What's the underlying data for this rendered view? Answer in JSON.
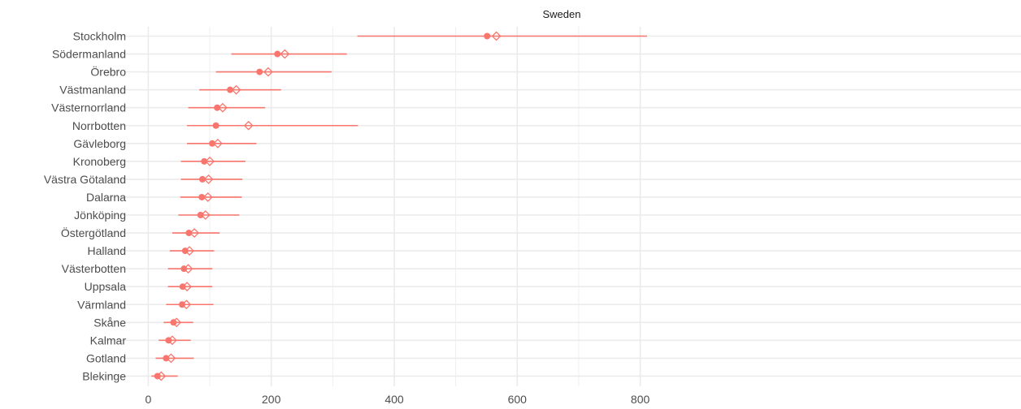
{
  "chart_data": {
    "type": "scatter",
    "title": "Sweden",
    "xlabel": "",
    "ylabel": "",
    "xlim": [
      -20,
      830
    ],
    "xticks": [
      0,
      200,
      400,
      600,
      800
    ],
    "grid": true,
    "legend": "none",
    "categories": [
      "Stockholm",
      "Södermanland",
      "Örebro",
      "Västmanland",
      "Västernorrland",
      "Norrbotten",
      "Gävleborg",
      "Kronoberg",
      "Västra Götaland",
      "Dalarna",
      "Jönköping",
      "Östergötland",
      "Halland",
      "Västerbotten",
      "Uppsala",
      "Värmland",
      "Skåne",
      "Kalmar",
      "Gotland",
      "Blekinge"
    ],
    "point_estimate": [
      551,
      210,
      181,
      133,
      112,
      110,
      104,
      91,
      88,
      87,
      85,
      66,
      60,
      58,
      56,
      55,
      41,
      33,
      29,
      15
    ],
    "diamond_estimate": [
      566,
      222,
      195,
      143,
      121,
      163,
      113,
      100,
      98,
      97,
      93,
      75,
      67,
      65,
      63,
      62,
      46,
      39,
      37,
      21
    ],
    "interval_low": [
      340,
      135,
      110,
      83,
      65,
      63,
      63,
      53,
      53,
      52,
      49,
      39,
      35,
      32,
      32,
      29,
      25,
      17,
      12,
      5
    ],
    "interval_high": [
      811,
      323,
      298,
      216,
      190,
      341,
      176,
      158,
      153,
      152,
      148,
      116,
      107,
      104,
      104,
      106,
      73,
      69,
      74,
      48
    ],
    "colors": {
      "series": "#f8766d",
      "grid": "#ebebeb",
      "text": "#4d4d4d"
    }
  }
}
